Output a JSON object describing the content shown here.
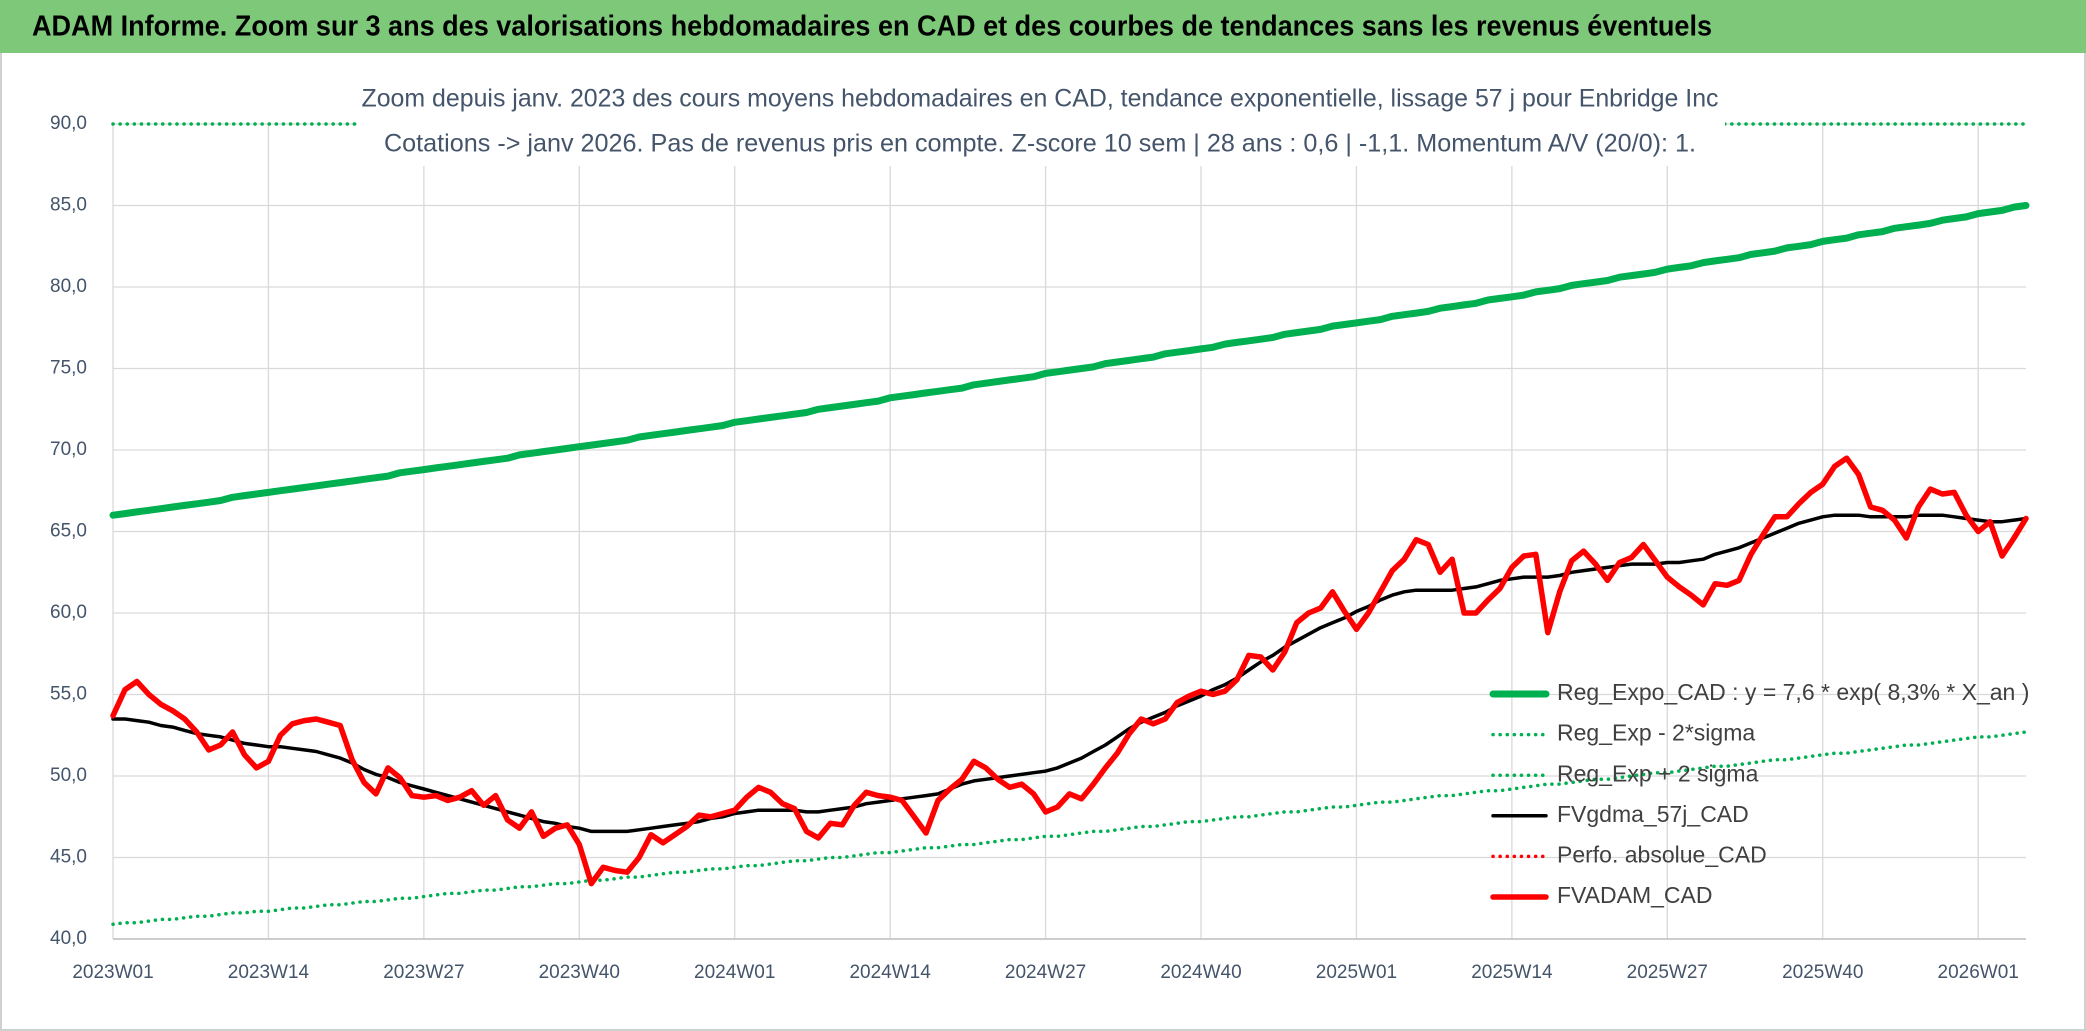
{
  "chart_data": {
    "type": "line",
    "title": "ADAM Informe. Zoom sur 3 ans des valorisations hebdomadaires en CAD et des courbes de tendances sans les revenus éventuels",
    "subtitle": [
      "Zoom depuis janv. 2023 des cours moyens hebdomadaires en CAD, tendance exponentielle, lissage 57 j pour Enbridge Inc",
      "Cotations -> janv 2026. Pas de revenus pris en compte. Z-score 10 sem | 28 ans : 0,6 | -1,1. Momentum A/V (20/0): 1."
    ],
    "categories": [
      "2023W01",
      null,
      null,
      null,
      null,
      null,
      null,
      null,
      null,
      null,
      null,
      null,
      null,
      "2023W14",
      null,
      null,
      null,
      null,
      null,
      null,
      null,
      null,
      null,
      null,
      null,
      null,
      "2023W27",
      null,
      null,
      null,
      null,
      null,
      null,
      null,
      null,
      null,
      null,
      null,
      null,
      "2023W40",
      null,
      null,
      null,
      null,
      null,
      null,
      null,
      null,
      null,
      null,
      null,
      null,
      "2024W01",
      null,
      null,
      null,
      null,
      null,
      null,
      null,
      null,
      null,
      null,
      null,
      null,
      "2024W14",
      null,
      null,
      null,
      null,
      null,
      null,
      null,
      null,
      null,
      null,
      null,
      null,
      "2024W27",
      null,
      null,
      null,
      null,
      null,
      null,
      null,
      null,
      null,
      null,
      null,
      null,
      "2024W40",
      null,
      null,
      null,
      null,
      null,
      null,
      null,
      null,
      null,
      null,
      null,
      null,
      "2025W01",
      null,
      null,
      null,
      null,
      null,
      null,
      null,
      null,
      null,
      null,
      null,
      null,
      "2025W14",
      null,
      null,
      null,
      null,
      null,
      null,
      null,
      null,
      null,
      null,
      null,
      null,
      "2025W27",
      null,
      null,
      null,
      null,
      null,
      null,
      null,
      null,
      null,
      null,
      null,
      null,
      "2025W40",
      null,
      null,
      null,
      null,
      null,
      null,
      null,
      null,
      null,
      null,
      null,
      null,
      "2026W01",
      null,
      null,
      null,
      null
    ],
    "ylim": [
      40,
      90
    ],
    "yticks": [
      {
        "value": 40,
        "label": "40,0"
      },
      {
        "value": 45,
        "label": "45,0"
      },
      {
        "value": 50,
        "label": "50,0"
      },
      {
        "value": 55,
        "label": "55,0"
      },
      {
        "value": 60,
        "label": "60,0"
      },
      {
        "value": 65,
        "label": "65,0"
      },
      {
        "value": 70,
        "label": "70,0"
      },
      {
        "value": 75,
        "label": "75,0"
      },
      {
        "value": 80,
        "label": "80,0"
      },
      {
        "value": 85,
        "label": "85,0"
      },
      {
        "value": 90,
        "label": "90,0"
      }
    ],
    "grid": true,
    "legend": "lower right",
    "series": [
      {
        "name": "Reg_Expo_CAD : y = 7,6 * exp( 8,3% *  X_an )",
        "color": "#00b050",
        "style": "solid",
        "values": [
          66.0,
          66.1,
          66.2,
          66.3,
          66.4,
          66.5,
          66.6,
          66.7,
          66.8,
          66.9,
          67.1,
          67.2,
          67.3,
          67.4,
          67.5,
          67.6,
          67.7,
          67.8,
          67.9,
          68.0,
          68.1,
          68.2,
          68.3,
          68.4,
          68.6,
          68.7,
          68.8,
          68.9,
          69.0,
          69.1,
          69.2,
          69.3,
          69.4,
          69.5,
          69.7,
          69.8,
          69.9,
          70.0,
          70.1,
          70.2,
          70.3,
          70.4,
          70.5,
          70.6,
          70.8,
          70.9,
          71.0,
          71.1,
          71.2,
          71.3,
          71.4,
          71.5,
          71.7,
          71.8,
          71.9,
          72.0,
          72.1,
          72.2,
          72.3,
          72.5,
          72.6,
          72.7,
          72.8,
          72.9,
          73.0,
          73.2,
          73.3,
          73.4,
          73.5,
          73.6,
          73.7,
          73.8,
          74.0,
          74.1,
          74.2,
          74.3,
          74.4,
          74.5,
          74.7,
          74.8,
          74.9,
          75.0,
          75.1,
          75.3,
          75.4,
          75.5,
          75.6,
          75.7,
          75.9,
          76.0,
          76.1,
          76.2,
          76.3,
          76.5,
          76.6,
          76.7,
          76.8,
          76.9,
          77.1,
          77.2,
          77.3,
          77.4,
          77.6,
          77.7,
          77.8,
          77.9,
          78.0,
          78.2,
          78.3,
          78.4,
          78.5,
          78.7,
          78.8,
          78.9,
          79.0,
          79.2,
          79.3,
          79.4,
          79.5,
          79.7,
          79.8,
          79.9,
          80.1,
          80.2,
          80.3,
          80.4,
          80.6,
          80.7,
          80.8,
          80.9,
          81.1,
          81.2,
          81.3,
          81.5,
          81.6,
          81.7,
          81.8,
          82.0,
          82.1,
          82.2,
          82.4,
          82.5,
          82.6,
          82.8,
          82.9,
          83.0,
          83.2,
          83.3,
          83.4,
          83.6,
          83.7,
          83.8,
          83.9,
          84.1,
          84.2,
          84.3,
          84.5,
          84.6,
          84.7,
          84.9,
          85.0
        ]
      },
      {
        "name": "Reg_Exp - 2*sigma",
        "color": "#00b050",
        "style": "dotted",
        "values": [
          40.9,
          41.0,
          41.0,
          41.1,
          41.2,
          41.2,
          41.3,
          41.4,
          41.4,
          41.5,
          41.6,
          41.6,
          41.7,
          41.7,
          41.8,
          41.9,
          41.9,
          42.0,
          42.1,
          42.1,
          42.2,
          42.3,
          42.3,
          42.4,
          42.5,
          42.5,
          42.6,
          42.7,
          42.8,
          42.8,
          42.9,
          43.0,
          43.0,
          43.1,
          43.2,
          43.2,
          43.3,
          43.4,
          43.4,
          43.5,
          43.6,
          43.6,
          43.7,
          43.8,
          43.8,
          43.9,
          44.0,
          44.1,
          44.1,
          44.2,
          44.3,
          44.3,
          44.4,
          44.5,
          44.5,
          44.6,
          44.7,
          44.8,
          44.8,
          44.9,
          45.0,
          45.0,
          45.1,
          45.2,
          45.3,
          45.3,
          45.4,
          45.5,
          45.6,
          45.6,
          45.7,
          45.8,
          45.8,
          45.9,
          46.0,
          46.1,
          46.1,
          46.2,
          46.3,
          46.3,
          46.4,
          46.5,
          46.6,
          46.6,
          46.7,
          46.8,
          46.9,
          46.9,
          47.0,
          47.1,
          47.2,
          47.2,
          47.3,
          47.4,
          47.5,
          47.5,
          47.6,
          47.7,
          47.8,
          47.8,
          47.9,
          48.0,
          48.1,
          48.1,
          48.2,
          48.3,
          48.4,
          48.4,
          48.5,
          48.6,
          48.7,
          48.8,
          48.8,
          48.9,
          49.0,
          49.1,
          49.1,
          49.2,
          49.3,
          49.4,
          49.5,
          49.5,
          49.6,
          49.7,
          49.8,
          49.8,
          49.9,
          50.0,
          50.1,
          50.2,
          50.2,
          50.3,
          50.4,
          50.5,
          50.6,
          50.6,
          50.7,
          50.8,
          50.9,
          51.0,
          51.0,
          51.1,
          51.2,
          51.3,
          51.4,
          51.4,
          51.5,
          51.6,
          51.7,
          51.8,
          51.9,
          51.9,
          52.0,
          52.1,
          52.2,
          52.3,
          52.4,
          52.4,
          52.5,
          52.6,
          52.7
        ]
      },
      {
        "name": "Reg_Exp + 2 sigma",
        "color": "#00b050",
        "style": "dotted",
        "values": [
          90,
          90,
          90,
          90,
          90,
          90,
          90,
          90,
          90,
          90,
          90,
          90,
          90,
          90,
          90,
          90,
          90,
          90,
          90,
          90,
          90,
          90,
          90,
          90,
          90,
          90,
          90,
          90,
          90,
          90,
          90,
          90,
          90,
          90,
          90,
          90,
          90,
          90,
          90,
          90,
          90,
          90,
          90,
          90,
          90,
          90,
          90,
          90,
          90,
          90,
          90,
          90,
          90,
          90,
          90,
          90,
          90,
          90,
          90,
          90,
          90,
          90,
          90,
          90,
          90,
          90,
          90,
          90,
          90,
          90,
          90,
          90,
          90,
          90,
          90,
          90,
          90,
          90,
          90,
          90,
          90,
          90,
          90,
          90,
          90,
          90,
          90,
          90,
          90,
          90,
          90,
          90,
          90,
          90,
          90,
          90,
          90,
          90,
          90,
          90,
          90,
          90,
          90,
          90,
          90,
          90,
          90,
          90,
          90,
          90,
          90,
          90,
          90,
          90,
          90,
          90,
          90,
          90,
          90,
          90,
          90,
          90,
          90,
          90,
          90,
          90,
          90,
          90,
          90,
          90,
          90,
          90,
          90,
          90,
          90,
          90,
          90,
          90,
          90,
          90,
          90,
          90,
          90,
          90,
          90,
          90,
          90,
          90,
          90,
          90,
          90,
          90,
          90,
          90,
          90,
          90,
          90,
          90,
          90,
          90,
          90
        ]
      },
      {
        "name": "FVgdma_57j_CAD",
        "color": "#000000",
        "style": "solid",
        "values": [
          53.5,
          53.5,
          53.4,
          53.3,
          53.1,
          53.0,
          52.8,
          52.6,
          52.5,
          52.4,
          52.2,
          52.0,
          51.9,
          51.8,
          51.8,
          51.7,
          51.6,
          51.5,
          51.3,
          51.1,
          50.8,
          50.4,
          50.1,
          49.9,
          49.6,
          49.4,
          49.2,
          49.0,
          48.8,
          48.6,
          48.4,
          48.2,
          48.0,
          47.8,
          47.6,
          47.4,
          47.2,
          47.1,
          46.9,
          46.8,
          46.6,
          46.6,
          46.6,
          46.6,
          46.7,
          46.8,
          46.9,
          47.0,
          47.1,
          47.2,
          47.4,
          47.5,
          47.7,
          47.8,
          47.9,
          47.9,
          47.9,
          47.9,
          47.8,
          47.8,
          47.9,
          48.0,
          48.1,
          48.3,
          48.4,
          48.5,
          48.6,
          48.7,
          48.8,
          48.9,
          49.2,
          49.5,
          49.7,
          49.8,
          49.9,
          50.0,
          50.1,
          50.2,
          50.3,
          50.5,
          50.8,
          51.1,
          51.5,
          51.9,
          52.4,
          52.9,
          53.3,
          53.6,
          53.9,
          54.3,
          54.6,
          54.9,
          55.3,
          55.6,
          56.0,
          56.5,
          57.0,
          57.4,
          57.9,
          58.3,
          58.7,
          59.1,
          59.4,
          59.7,
          60.1,
          60.4,
          60.8,
          61.1,
          61.3,
          61.4,
          61.4,
          61.4,
          61.4,
          61.5,
          61.6,
          61.8,
          62.0,
          62.1,
          62.2,
          62.2,
          62.2,
          62.3,
          62.5,
          62.6,
          62.7,
          62.8,
          62.9,
          63.0,
          63.0,
          63.0,
          63.1,
          63.1,
          63.2,
          63.3,
          63.6,
          63.8,
          64.0,
          64.3,
          64.6,
          64.9,
          65.2,
          65.5,
          65.7,
          65.9,
          66.0,
          66.0,
          66.0,
          65.9,
          65.9,
          65.9,
          65.9,
          66.0,
          66.0,
          66.0,
          65.9,
          65.8,
          65.7,
          65.6,
          65.6,
          65.7,
          65.8
        ]
      },
      {
        "name": "Perfo. absolue_CAD",
        "color": "#ff0000",
        "style": "dotted",
        "values": [
          null,
          null,
          null,
          null,
          null,
          null,
          null,
          null,
          null,
          null,
          null,
          null,
          null,
          null,
          null,
          null,
          null,
          null,
          null,
          null,
          null,
          null,
          null,
          null,
          null,
          null,
          null,
          null,
          null,
          null,
          null,
          null,
          null,
          null,
          null,
          null,
          null,
          null,
          null,
          null,
          null,
          null,
          null,
          null,
          null,
          null,
          null,
          null,
          null,
          null,
          null,
          null,
          null,
          null,
          null,
          null,
          null,
          null,
          null,
          null,
          null,
          null,
          null,
          null,
          null,
          null,
          null,
          null,
          null,
          null,
          null,
          null,
          null,
          null,
          null,
          null,
          null,
          null,
          null,
          null,
          null,
          null,
          null,
          null,
          null,
          null,
          null,
          null,
          null,
          null,
          null,
          null,
          null,
          null,
          null,
          null,
          null,
          null,
          null,
          null,
          null,
          null,
          null,
          null,
          null,
          null,
          null,
          null,
          null,
          null,
          null,
          null,
          null,
          null,
          null,
          null,
          null,
          null,
          null,
          null,
          null,
          null,
          null,
          null,
          null,
          null,
          null,
          null,
          null,
          null,
          null,
          null,
          null,
          null,
          null,
          null,
          null,
          null,
          null,
          null,
          null,
          null,
          null,
          null,
          null,
          null,
          null,
          null,
          null,
          null,
          null,
          null,
          null,
          null,
          null,
          null,
          null,
          null,
          null,
          null,
          null
        ]
      },
      {
        "name": "FVADAM_CAD",
        "color": "#ff0000",
        "style": "solid",
        "values": [
          53.7,
          55.3,
          55.8,
          55.0,
          54.4,
          54.0,
          53.5,
          52.7,
          51.6,
          51.9,
          52.7,
          51.3,
          50.5,
          50.9,
          52.5,
          53.2,
          53.4,
          53.5,
          53.3,
          53.1,
          51.0,
          49.6,
          48.9,
          50.5,
          49.9,
          48.8,
          48.7,
          48.8,
          48.5,
          48.7,
          49.1,
          48.2,
          48.8,
          47.3,
          46.8,
          47.8,
          46.3,
          46.8,
          47.0,
          45.8,
          43.4,
          44.4,
          44.2,
          44.1,
          45.0,
          46.4,
          45.9,
          46.4,
          46.9,
          47.6,
          47.5,
          47.7,
          47.9,
          48.7,
          49.3,
          49.0,
          48.3,
          48.0,
          46.6,
          46.2,
          47.1,
          47.0,
          48.2,
          49.0,
          48.8,
          48.7,
          48.5,
          47.5,
          46.5,
          48.5,
          49.2,
          49.8,
          50.9,
          50.5,
          49.8,
          49.3,
          49.5,
          48.9,
          47.8,
          48.1,
          48.9,
          48.6,
          49.5,
          50.5,
          51.4,
          52.6,
          53.5,
          53.2,
          53.5,
          54.5,
          54.9,
          55.2,
          55.0,
          55.2,
          55.9,
          57.4,
          57.3,
          56.5,
          57.6,
          59.4,
          60.0,
          60.3,
          61.3,
          60.1,
          59.0,
          60.0,
          61.3,
          62.6,
          63.3,
          64.5,
          64.2,
          62.5,
          63.3,
          60.0,
          60.0,
          60.8,
          61.5,
          62.8,
          63.5,
          63.6,
          58.8,
          61.3,
          63.2,
          63.8,
          63.0,
          62.0,
          63.1,
          63.4,
          64.2,
          63.2,
          62.2,
          61.6,
          61.1,
          60.5,
          61.8,
          61.7,
          62.0,
          63.6,
          64.8,
          65.9,
          65.9,
          66.7,
          67.4,
          67.9,
          69.0,
          69.5,
          68.5,
          66.5,
          66.3,
          65.7,
          64.6,
          66.5,
          67.6,
          67.3,
          67.4,
          66.0,
          65.0,
          65.6,
          63.5,
          64.6,
          65.8
        ]
      }
    ]
  }
}
